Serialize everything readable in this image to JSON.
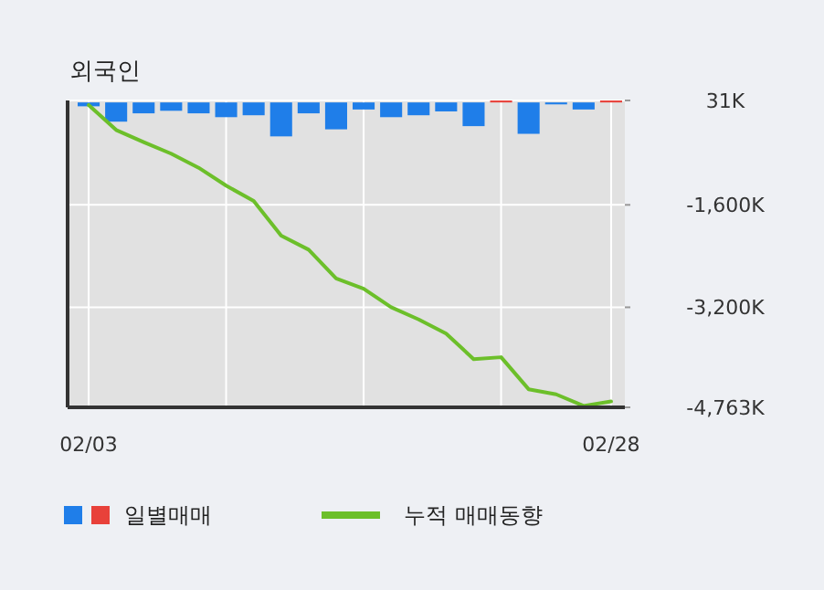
{
  "chart_data": {
    "type": "bar",
    "title": "외국인",
    "categories": [
      "02/03",
      null,
      null,
      null,
      null,
      null,
      null,
      null,
      null,
      null,
      null,
      null,
      null,
      null,
      null,
      null,
      null,
      null,
      null,
      "02/28"
    ],
    "series": [
      {
        "name": "일별매매",
        "colors": [
          "#1f7ee9",
          "#1f7ee9",
          "#1f7ee9",
          "#1f7ee9",
          "#1f7ee9",
          "#1f7ee9",
          "#1f7ee9",
          "#1f7ee9",
          "#1f7ee9",
          "#1f7ee9",
          "#1f7ee9",
          "#1f7ee9",
          "#1f7ee9",
          "#1f7ee9",
          "#1f7ee9",
          "#e8413a",
          "#1f7ee9",
          "#1f7ee9",
          "#1f7ee9",
          "#e8413a"
        ],
        "values": [
          -60,
          -300,
          -170,
          -130,
          -170,
          -230,
          -200,
          -530,
          -170,
          -420,
          -110,
          -230,
          -200,
          -140,
          -370,
          30,
          -490,
          -30,
          -110,
          30
        ]
      },
      {
        "name": "누적 매매동향",
        "type": "line",
        "color": "#6cbf2a",
        "values": [
          -40,
          -430,
          -620,
          -800,
          -1020,
          -1300,
          -1540,
          -2080,
          -2300,
          -2750,
          -2910,
          -3200,
          -3390,
          -3610,
          -4010,
          -3980,
          -4480,
          -4560,
          -4740,
          -4670
        ]
      }
    ],
    "ylim": [
      -4763,
      31
    ],
    "yticks": [
      {
        "value": 31,
        "label": "31K"
      },
      {
        "value": -1600,
        "label": "-1,600K"
      },
      {
        "value": -3200,
        "label": "-3,200K"
      },
      {
        "value": -4763,
        "label": "-4,763K"
      }
    ],
    "grid": true,
    "legend": "bottom"
  }
}
